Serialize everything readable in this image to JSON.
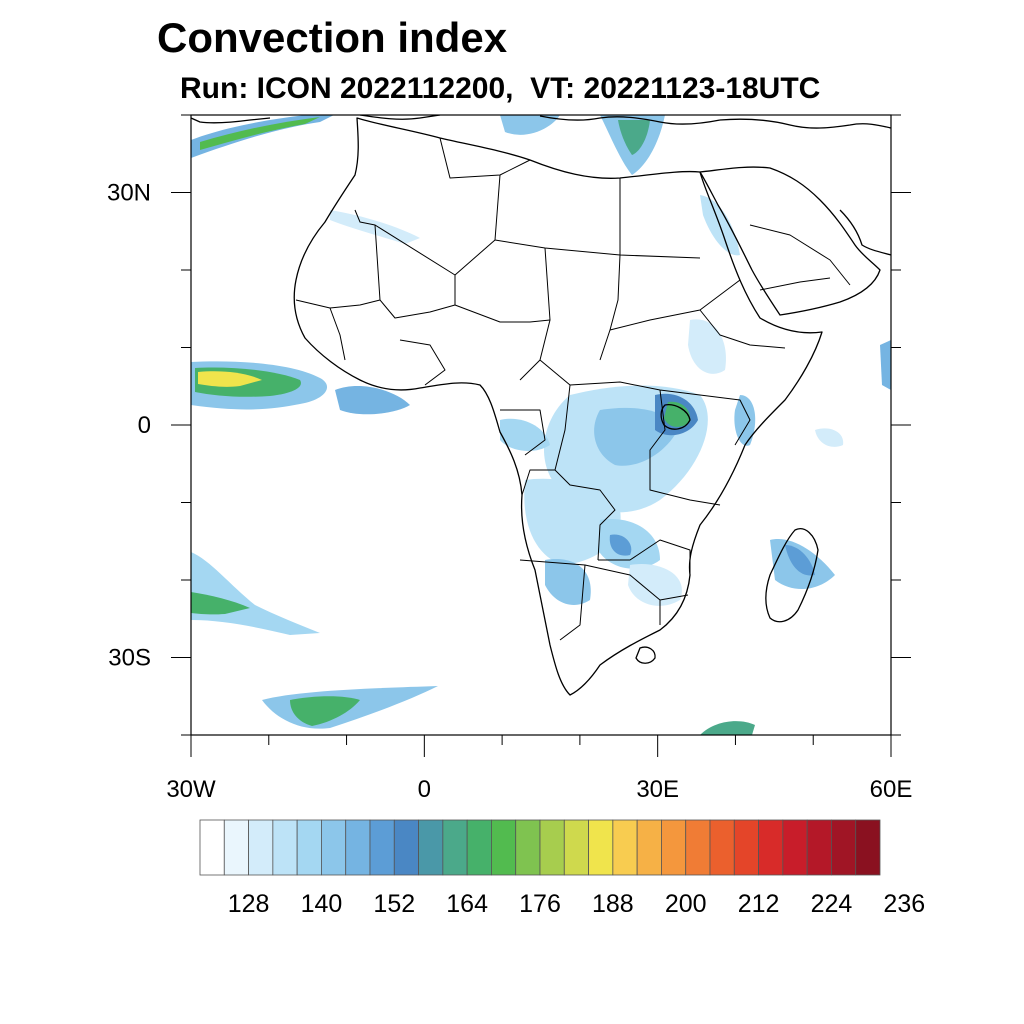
{
  "title": "Convection index",
  "subtitle": "Run: ICON 2022112200,  VT: 20221123-18UTC",
  "map": {
    "lon_range": [
      -30,
      60
    ],
    "lat_range": [
      -40,
      40
    ],
    "lat_labels": [
      {
        "value": 30,
        "text": "30N"
      },
      {
        "value": 0,
        "text": "0"
      },
      {
        "value": -30,
        "text": "30S"
      }
    ],
    "lon_labels": [
      {
        "value": -30,
        "text": "30W"
      },
      {
        "value": 0,
        "text": "0"
      },
      {
        "value": 30,
        "text": "30E"
      },
      {
        "value": 60,
        "text": "60E"
      }
    ],
    "colors": {
      "coast": "#000000",
      "ocean": "#ffffff"
    }
  },
  "colorbar": {
    "colors": [
      "#ffffff",
      "#eaf6fd",
      "#d3ecfa",
      "#bde3f7",
      "#a4d7f2",
      "#8cc6ea",
      "#75b4e2",
      "#5c9dd6",
      "#4a87c4",
      "#4a98a8",
      "#4ba98a",
      "#46b16a",
      "#52bb4f",
      "#7fc350",
      "#a7cd4e",
      "#cfd94d",
      "#f0e44c",
      "#f8cc50",
      "#f6b146",
      "#f4973d",
      "#f07c35",
      "#eb602d",
      "#e44529",
      "#d82b29",
      "#c81d2a",
      "#b41828",
      "#a01525",
      "#8a1120"
    ],
    "labels": [
      "128",
      "140",
      "152",
      "164",
      "176",
      "188",
      "200",
      "212",
      "224",
      "236"
    ]
  }
}
